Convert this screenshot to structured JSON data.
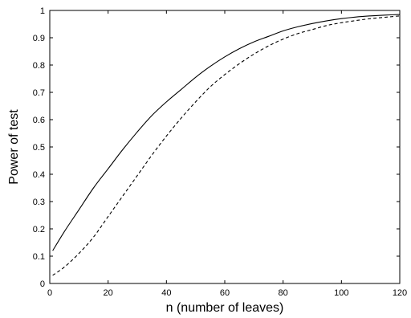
{
  "chart_data": {
    "type": "line",
    "title": "",
    "xlabel": "n  (number of leaves)",
    "ylabel": "Power of test",
    "xlim": [
      0,
      120
    ],
    "ylim": [
      0,
      1
    ],
    "xticks": [
      0,
      20,
      40,
      60,
      80,
      100,
      120
    ],
    "yticks": [
      0,
      0.1,
      0.2,
      0.3,
      0.4,
      0.5,
      0.6,
      0.7,
      0.8,
      0.9,
      1
    ],
    "grid": false,
    "legend": "none",
    "series": [
      {
        "style": "solid",
        "color": "#000000",
        "x": [
          1,
          5,
          10,
          15,
          20,
          25,
          30,
          35,
          40,
          45,
          50,
          55,
          60,
          65,
          70,
          75,
          80,
          85,
          90,
          95,
          100,
          105,
          110,
          115,
          120
        ],
        "y": [
          0.12,
          0.19,
          0.27,
          0.35,
          0.42,
          0.49,
          0.555,
          0.615,
          0.665,
          0.71,
          0.755,
          0.795,
          0.83,
          0.86,
          0.885,
          0.905,
          0.925,
          0.94,
          0.952,
          0.962,
          0.97,
          0.976,
          0.98,
          0.983,
          0.985
        ]
      },
      {
        "style": "dashed",
        "color": "#000000",
        "x": [
          1,
          5,
          10,
          15,
          20,
          25,
          30,
          35,
          40,
          45,
          50,
          55,
          60,
          65,
          70,
          75,
          80,
          85,
          90,
          95,
          100,
          105,
          110,
          115,
          120
        ],
        "y": [
          0.03,
          0.06,
          0.11,
          0.17,
          0.245,
          0.32,
          0.395,
          0.47,
          0.54,
          0.605,
          0.665,
          0.72,
          0.765,
          0.805,
          0.84,
          0.87,
          0.895,
          0.915,
          0.93,
          0.945,
          0.955,
          0.963,
          0.97,
          0.975,
          0.98
        ]
      }
    ]
  }
}
